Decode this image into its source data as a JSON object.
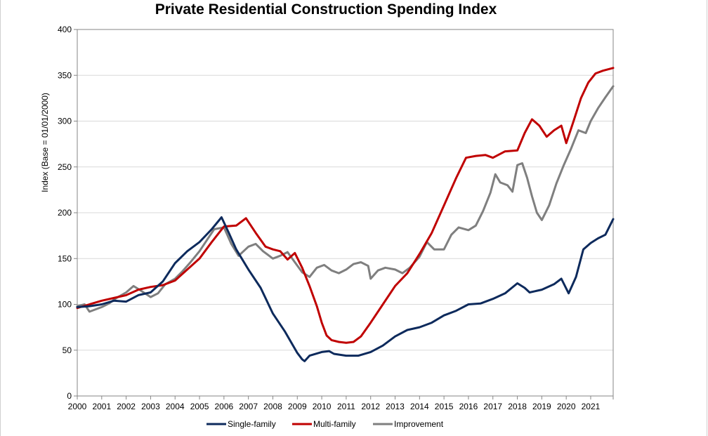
{
  "chart_data": {
    "type": "line",
    "title": "Private Residential Construction Spending Index",
    "ylabel": "Index  (Base = 01/01/2000)",
    "xlabel": "",
    "ylim": [
      0,
      400
    ],
    "xlim": [
      2000.0,
      2021.92
    ],
    "yticks": [
      0,
      50,
      100,
      150,
      200,
      250,
      300,
      350,
      400
    ],
    "xticks": [
      "2000",
      "2001",
      "2002",
      "2003",
      "2004",
      "2005",
      "2006",
      "2007",
      "2008",
      "2009",
      "2010",
      "2011",
      "2012",
      "2013",
      "2014",
      "2015",
      "2016",
      "2017",
      "2018",
      "2019",
      "2020",
      "2021"
    ],
    "grid": true,
    "legend_position": "bottom",
    "series": [
      {
        "name": "Single-family",
        "color": "#0d2a5c",
        "points": [
          [
            2000.0,
            97
          ],
          [
            2000.5,
            98
          ],
          [
            2001.0,
            100
          ],
          [
            2001.5,
            104
          ],
          [
            2002.0,
            103
          ],
          [
            2002.5,
            110
          ],
          [
            2003.0,
            113
          ],
          [
            2003.5,
            125
          ],
          [
            2004.0,
            145
          ],
          [
            2004.5,
            158
          ],
          [
            2005.0,
            168
          ],
          [
            2005.5,
            182
          ],
          [
            2005.9,
            195
          ],
          [
            2006.2,
            178
          ],
          [
            2006.5,
            160
          ],
          [
            2007.0,
            138
          ],
          [
            2007.5,
            118
          ],
          [
            2008.0,
            90
          ],
          [
            2008.5,
            70
          ],
          [
            2009.0,
            47
          ],
          [
            2009.2,
            40
          ],
          [
            2009.3,
            38
          ],
          [
            2009.5,
            44
          ],
          [
            2010.0,
            48
          ],
          [
            2010.3,
            49
          ],
          [
            2010.5,
            46
          ],
          [
            2011.0,
            44
          ],
          [
            2011.5,
            44
          ],
          [
            2012.0,
            48
          ],
          [
            2012.5,
            55
          ],
          [
            2013.0,
            65
          ],
          [
            2013.5,
            72
          ],
          [
            2014.0,
            75
          ],
          [
            2014.5,
            80
          ],
          [
            2015.0,
            88
          ],
          [
            2015.5,
            93
          ],
          [
            2016.0,
            100
          ],
          [
            2016.5,
            101
          ],
          [
            2017.0,
            106
          ],
          [
            2017.5,
            112
          ],
          [
            2018.0,
            123
          ],
          [
            2018.3,
            118
          ],
          [
            2018.5,
            113
          ],
          [
            2019.0,
            116
          ],
          [
            2019.5,
            122
          ],
          [
            2019.8,
            128
          ],
          [
            2020.1,
            112
          ],
          [
            2020.4,
            130
          ],
          [
            2020.7,
            160
          ],
          [
            2021.0,
            167
          ],
          [
            2021.3,
            172
          ],
          [
            2021.6,
            176
          ],
          [
            2021.92,
            193
          ]
        ]
      },
      {
        "name": "Multi-family",
        "color": "#c00000",
        "points": [
          [
            2000.0,
            96
          ],
          [
            2000.5,
            100
          ],
          [
            2001.0,
            104
          ],
          [
            2001.5,
            107
          ],
          [
            2002.0,
            110
          ],
          [
            2002.5,
            116
          ],
          [
            2003.0,
            119
          ],
          [
            2003.5,
            121
          ],
          [
            2004.0,
            126
          ],
          [
            2004.5,
            138
          ],
          [
            2005.0,
            150
          ],
          [
            2005.5,
            168
          ],
          [
            2006.0,
            185
          ],
          [
            2006.5,
            186
          ],
          [
            2006.9,
            194
          ],
          [
            2007.3,
            178
          ],
          [
            2007.7,
            163
          ],
          [
            2008.0,
            160
          ],
          [
            2008.3,
            158
          ],
          [
            2008.6,
            149
          ],
          [
            2008.9,
            156
          ],
          [
            2009.2,
            140
          ],
          [
            2009.5,
            120
          ],
          [
            2009.8,
            98
          ],
          [
            2010.0,
            80
          ],
          [
            2010.2,
            66
          ],
          [
            2010.4,
            61
          ],
          [
            2010.7,
            59
          ],
          [
            2011.0,
            58
          ],
          [
            2011.3,
            59
          ],
          [
            2011.6,
            65
          ],
          [
            2012.0,
            80
          ],
          [
            2012.5,
            100
          ],
          [
            2013.0,
            120
          ],
          [
            2013.5,
            134
          ],
          [
            2014.0,
            155
          ],
          [
            2014.5,
            178
          ],
          [
            2015.0,
            208
          ],
          [
            2015.5,
            238
          ],
          [
            2015.9,
            260
          ],
          [
            2016.3,
            262
          ],
          [
            2016.7,
            263
          ],
          [
            2017.0,
            260
          ],
          [
            2017.5,
            267
          ],
          [
            2018.0,
            268
          ],
          [
            2018.3,
            287
          ],
          [
            2018.6,
            302
          ],
          [
            2018.9,
            295
          ],
          [
            2019.2,
            283
          ],
          [
            2019.5,
            290
          ],
          [
            2019.8,
            295
          ],
          [
            2020.0,
            276
          ],
          [
            2020.3,
            300
          ],
          [
            2020.6,
            325
          ],
          [
            2020.9,
            342
          ],
          [
            2021.2,
            352
          ],
          [
            2021.5,
            355
          ],
          [
            2021.92,
            358
          ]
        ]
      },
      {
        "name": "Improvement",
        "color": "#7f7f7f",
        "points": [
          [
            2000.0,
            98
          ],
          [
            2000.3,
            100
          ],
          [
            2000.5,
            92
          ],
          [
            2000.8,
            95
          ],
          [
            2001.0,
            97
          ],
          [
            2001.3,
            101
          ],
          [
            2001.6,
            107
          ],
          [
            2002.0,
            113
          ],
          [
            2002.3,
            120
          ],
          [
            2002.6,
            115
          ],
          [
            2003.0,
            108
          ],
          [
            2003.3,
            112
          ],
          [
            2003.6,
            122
          ],
          [
            2004.0,
            128
          ],
          [
            2004.3,
            136
          ],
          [
            2004.6,
            145
          ],
          [
            2005.0,
            158
          ],
          [
            2005.3,
            170
          ],
          [
            2005.6,
            182
          ],
          [
            2006.0,
            184
          ],
          [
            2006.3,
            166
          ],
          [
            2006.6,
            153
          ],
          [
            2007.0,
            163
          ],
          [
            2007.3,
            166
          ],
          [
            2007.6,
            158
          ],
          [
            2008.0,
            150
          ],
          [
            2008.3,
            153
          ],
          [
            2008.6,
            157
          ],
          [
            2008.9,
            146
          ],
          [
            2009.2,
            135
          ],
          [
            2009.5,
            130
          ],
          [
            2009.8,
            140
          ],
          [
            2010.1,
            143
          ],
          [
            2010.4,
            137
          ],
          [
            2010.7,
            134
          ],
          [
            2011.0,
            138
          ],
          [
            2011.3,
            144
          ],
          [
            2011.6,
            146
          ],
          [
            2011.9,
            142
          ],
          [
            2012.0,
            128
          ],
          [
            2012.3,
            137
          ],
          [
            2012.6,
            140
          ],
          [
            2013.0,
            138
          ],
          [
            2013.3,
            134
          ],
          [
            2013.6,
            140
          ],
          [
            2014.0,
            152
          ],
          [
            2014.3,
            168
          ],
          [
            2014.6,
            160
          ],
          [
            2015.0,
            160
          ],
          [
            2015.3,
            176
          ],
          [
            2015.6,
            184
          ],
          [
            2016.0,
            181
          ],
          [
            2016.3,
            186
          ],
          [
            2016.6,
            202
          ],
          [
            2016.9,
            222
          ],
          [
            2017.1,
            242
          ],
          [
            2017.3,
            233
          ],
          [
            2017.6,
            230
          ],
          [
            2017.8,
            223
          ],
          [
            2018.0,
            252
          ],
          [
            2018.2,
            254
          ],
          [
            2018.4,
            238
          ],
          [
            2018.6,
            218
          ],
          [
            2018.8,
            200
          ],
          [
            2019.0,
            192
          ],
          [
            2019.3,
            208
          ],
          [
            2019.6,
            232
          ],
          [
            2019.9,
            252
          ],
          [
            2020.2,
            270
          ],
          [
            2020.5,
            290
          ],
          [
            2020.8,
            287
          ],
          [
            2021.0,
            300
          ],
          [
            2021.3,
            314
          ],
          [
            2021.6,
            326
          ],
          [
            2021.92,
            338
          ]
        ]
      }
    ]
  }
}
